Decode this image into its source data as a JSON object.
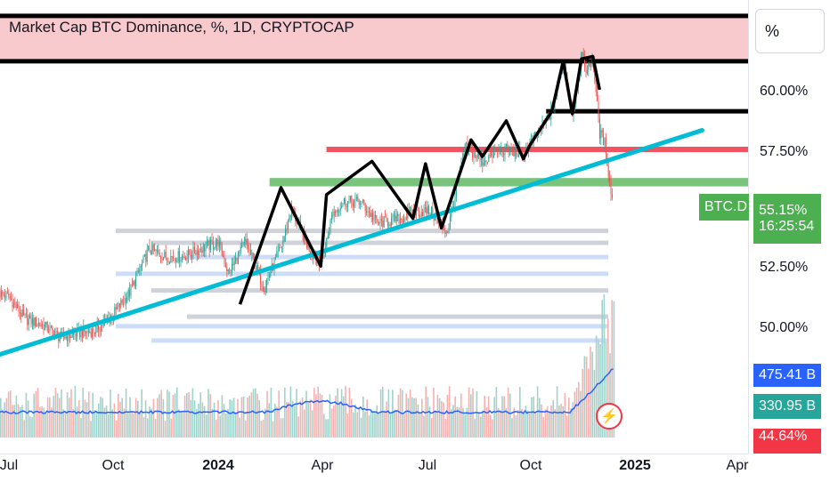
{
  "header": {
    "title": "Market Cap BTC Dominance, %, 1D, CRYPTOCAP",
    "scale_button": "%"
  },
  "symbol_tag": "BTC.D",
  "price_badge": {
    "value": "55.15%",
    "countdown": "16:25:54"
  },
  "volume_badges": [
    "475.41 B",
    "330.95 B",
    "44.64%"
  ],
  "alert_icon": "lightning-icon",
  "colors": {
    "up": "#26a69a",
    "down": "#ef5350",
    "trend": "#00bcd4",
    "zigzag": "#000000",
    "resistance_zone": "#f8c9cd",
    "support_zone": "#4caf50",
    "red_line": "#f23645",
    "volume_ma": "#2962ff",
    "price_badge": "#4caf50",
    "volume_badge_blue": "#2962ff",
    "volume_badge_teal": "#26a69a",
    "volume_badge_red": "#f23645"
  },
  "chart_data": {
    "type": "candlestick",
    "title": "Market Cap BTC Dominance, %, 1D, CRYPTOCAP",
    "y_axis": {
      "unit": "%",
      "ticks": [
        "60.00%",
        "57.50%",
        "52.50%",
        "50.00%"
      ],
      "tick_values": [
        60.0,
        57.5,
        52.5,
        50.0
      ]
    },
    "x_axis": {
      "ticks": [
        "Jul",
        "Oct",
        "2024",
        "Apr",
        "Jul",
        "Oct",
        "2025",
        "Apr"
      ],
      "bold_ticks": [
        "2024",
        "2025"
      ],
      "tick_dates": [
        "2023-07-01",
        "2023-10-01",
        "2024-01-01",
        "2024-04-01",
        "2024-07-01",
        "2024-10-01",
        "2025-01-01",
        "2025-04-01"
      ]
    },
    "last_value": 55.15,
    "price_path": [
      [
        "2023-06-15",
        51.6
      ],
      [
        "2023-07-01",
        51.3
      ],
      [
        "2023-07-15",
        50.4
      ],
      [
        "2023-08-01",
        50.1
      ],
      [
        "2023-08-15",
        49.6
      ],
      [
        "2023-09-01",
        49.8
      ],
      [
        "2023-09-15",
        49.9
      ],
      [
        "2023-10-01",
        50.6
      ],
      [
        "2023-10-15",
        51.5
      ],
      [
        "2023-11-01",
        53.3
      ],
      [
        "2023-11-15",
        53.0
      ],
      [
        "2023-12-01",
        53.0
      ],
      [
        "2023-12-15",
        53.3
      ],
      [
        "2024-01-01",
        53.6
      ],
      [
        "2024-01-10",
        52.3
      ],
      [
        "2024-01-25",
        53.6
      ],
      [
        "2024-02-10",
        51.7
      ],
      [
        "2024-02-26",
        53.5
      ],
      [
        "2024-03-05",
        55.0
      ],
      [
        "2024-03-20",
        53.4
      ],
      [
        "2024-04-01",
        52.7
      ],
      [
        "2024-04-10",
        54.8
      ],
      [
        "2024-04-20",
        55.3
      ],
      [
        "2024-05-05",
        55.3
      ],
      [
        "2024-05-20",
        54.4
      ],
      [
        "2024-06-10",
        54.6
      ],
      [
        "2024-06-20",
        54.9
      ],
      [
        "2024-07-05",
        54.9
      ],
      [
        "2024-07-20",
        54.0
      ],
      [
        "2024-08-05",
        57.6
      ],
      [
        "2024-08-20",
        57.0
      ],
      [
        "2024-09-01",
        57.4
      ],
      [
        "2024-09-10",
        57.5
      ],
      [
        "2024-09-25",
        57.3
      ],
      [
        "2024-10-05",
        58.0
      ],
      [
        "2024-10-20",
        59.1
      ],
      [
        "2024-10-30",
        61.2
      ],
      [
        "2024-11-07",
        59.0
      ],
      [
        "2024-11-15",
        61.4
      ],
      [
        "2024-11-20",
        60.8
      ],
      [
        "2024-11-25",
        61.3
      ],
      [
        "2024-12-01",
        58.2
      ],
      [
        "2024-12-06",
        57.7
      ],
      [
        "2024-12-10",
        56.0
      ],
      [
        "2024-12-13",
        55.15
      ]
    ],
    "zigzag": [
      [
        "2024-01-20",
        51.0
      ],
      [
        "2024-02-25",
        55.9
      ],
      [
        "2024-03-31",
        52.6
      ],
      [
        "2024-04-05",
        55.6
      ],
      [
        "2024-05-15",
        57.0
      ],
      [
        "2024-06-20",
        54.6
      ],
      [
        "2024-07-01",
        56.9
      ],
      [
        "2024-07-15",
        54.2
      ],
      [
        "2024-08-10",
        57.9
      ],
      [
        "2024-08-20",
        57.2
      ],
      [
        "2024-09-10",
        58.7
      ],
      [
        "2024-09-25",
        57.1
      ],
      [
        "2024-10-01",
        57.7
      ],
      [
        "2024-10-20",
        59.1
      ],
      [
        "2024-10-30",
        61.2
      ],
      [
        "2024-11-07",
        59.0
      ],
      [
        "2024-11-15",
        61.3
      ],
      [
        "2024-11-25",
        61.4
      ],
      [
        "2024-12-01",
        60.0
      ]
    ],
    "trendline": [
      [
        "2023-05-15",
        48.3
      ],
      [
        "2025-03-01",
        58.3
      ]
    ],
    "resistance_zone": {
      "from": 61.2,
      "to": 63.1
    },
    "support_zone": {
      "from_date": "2024-02-15",
      "from": 55.95,
      "to": 56.3
    },
    "black_levels": [
      {
        "from_date": "2024-10-15",
        "value": 59.1
      }
    ],
    "red_levels": [
      {
        "from_date": "2024-04-05",
        "value": 57.5
      }
    ],
    "volume_ma_level_badges": [
      "475.41 B",
      "330.95 B"
    ]
  }
}
